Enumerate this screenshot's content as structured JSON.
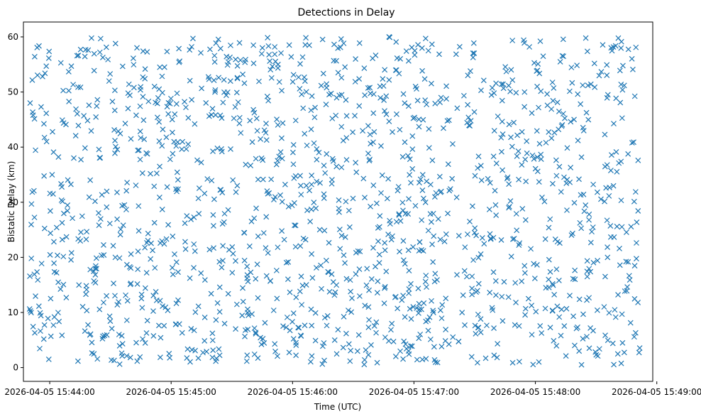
{
  "chart_data": {
    "type": "scatter",
    "title": "Detections in Delay",
    "xlabel": "Time (UTC)",
    "ylabel": "Bistatic Delay (km)",
    "marker": "x",
    "color": "#1f77b4",
    "grid": false,
    "legend": "none",
    "x_range": [
      "2026-04-05 15:43:47",
      "2026-04-05 15:48:58"
    ],
    "x_data_extent": [
      "2026-04-05 15:43:50",
      "2026-04-05 15:48:52"
    ],
    "ylim": [
      -2.5,
      62.7
    ],
    "y_ticks": [
      0,
      10,
      20,
      30,
      40,
      50,
      60
    ],
    "x_ticks": [
      "2026-04-05 15:44:00",
      "2026-04-05 15:45:00",
      "2026-04-05 15:46:00",
      "2026-04-05 15:47:00",
      "2026-04-05 15:48:00",
      "2026-04-05 15:49:00"
    ],
    "point_count": 1500,
    "y_extent": [
      0.5,
      60
    ],
    "distribution": "uniform random scatter across full time and delay range"
  }
}
